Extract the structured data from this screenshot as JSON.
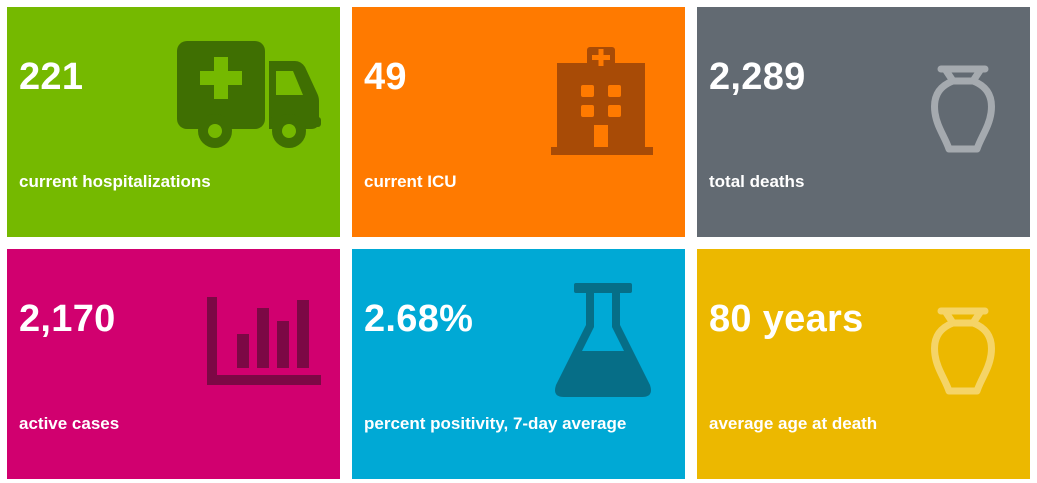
{
  "tiles": [
    {
      "value": "221",
      "label": "current hospitalizations",
      "icon": "ambulance-icon",
      "bg": "#75b900",
      "icon_color": "#3f6f02"
    },
    {
      "value": "49",
      "label": "current ICU",
      "icon": "hospital-building-icon",
      "bg": "#ff7a00",
      "icon_color": "#a84b06"
    },
    {
      "value": "2,289",
      "label": "total deaths",
      "icon": "urn-icon",
      "bg": "#626a72",
      "icon_color": "#a5aaaf"
    },
    {
      "value": "2,170",
      "label": "active cases",
      "icon": "bar-chart-icon",
      "bg": "#d1006f",
      "icon_color": "#7c0845"
    },
    {
      "value": "2.68%",
      "label": "percent positivity, 7-day average",
      "icon": "flask-icon",
      "bg": "#00a9d5",
      "icon_color": "#066e87"
    },
    {
      "value": "80 years",
      "label": "average age at death",
      "icon": "urn-icon",
      "bg": "#ecb800",
      "icon_color": "#f5d467"
    }
  ]
}
